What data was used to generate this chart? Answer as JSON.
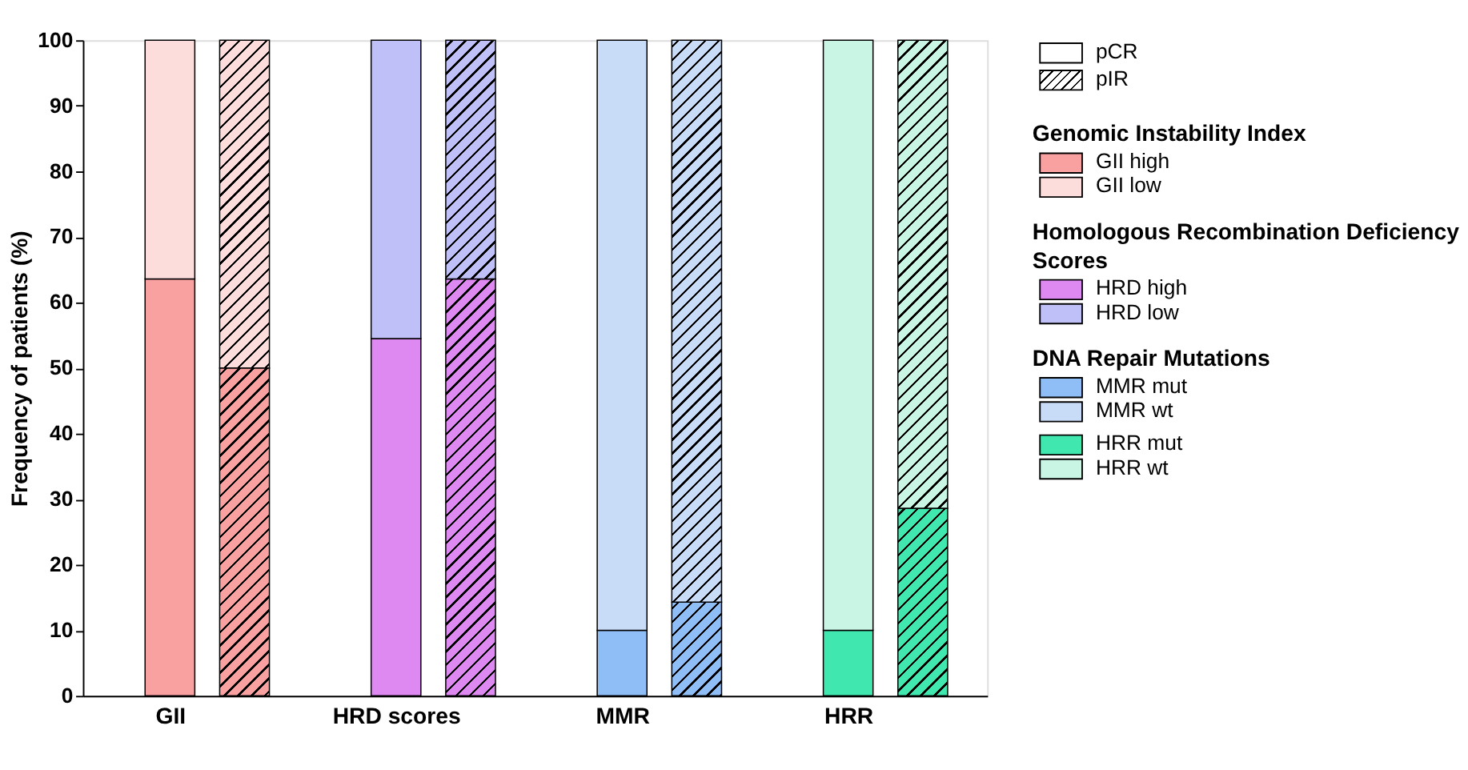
{
  "chart_data": {
    "type": "bar",
    "stacked": true,
    "ylabel": "Frequency of patients (%)",
    "categories": [
      "GII",
      null,
      "HRD scores",
      null,
      "MMR",
      null,
      "HRR",
      null
    ],
    "series": [
      {
        "name": "GII high",
        "color": "#f9a0a0",
        "values": [
          63.6,
          50,
          null,
          null,
          null,
          null,
          null,
          null
        ]
      },
      {
        "name": "GII low",
        "color": "#fddcdc",
        "values": [
          36.4,
          50,
          null,
          null,
          null,
          null,
          null,
          null
        ]
      },
      {
        "name": "HRD high",
        "color": "#de88f2",
        "values": [
          null,
          null,
          54.5,
          63.6,
          null,
          null,
          null,
          null
        ]
      },
      {
        "name": "HRD low",
        "color": "#c0c0f8",
        "values": [
          null,
          null,
          45.5,
          36.4,
          null,
          null,
          null,
          null
        ]
      },
      {
        "name": "MMR mut",
        "color": "#8fbdf5",
        "values": [
          null,
          null,
          null,
          null,
          10,
          14.3,
          null,
          null
        ]
      },
      {
        "name": "MMR wt",
        "color": "#c8dcf8",
        "values": [
          null,
          null,
          null,
          null,
          90,
          85.7,
          null,
          null
        ]
      },
      {
        "name": "HRR mut",
        "color": "#40e8b0",
        "values": [
          null,
          null,
          null,
          null,
          null,
          null,
          10,
          28.6
        ]
      },
      {
        "name": "HRR wt",
        "color": "#c8f5e4",
        "values": [
          null,
          null,
          null,
          null,
          null,
          null,
          90,
          71.4
        ]
      }
    ],
    "annotations": [
      "pCR",
      "pIR",
      "Genomic Instability Index",
      "Homologous Recombination Deficiency Scores",
      "DNA Repair Mutations"
    ],
    "ylim": [
      0,
      100
    ],
    "yticks": [
      0,
      10,
      20,
      30,
      40,
      50,
      60,
      70,
      80,
      90,
      100
    ],
    "grid": false,
    "legend": "right"
  }
}
